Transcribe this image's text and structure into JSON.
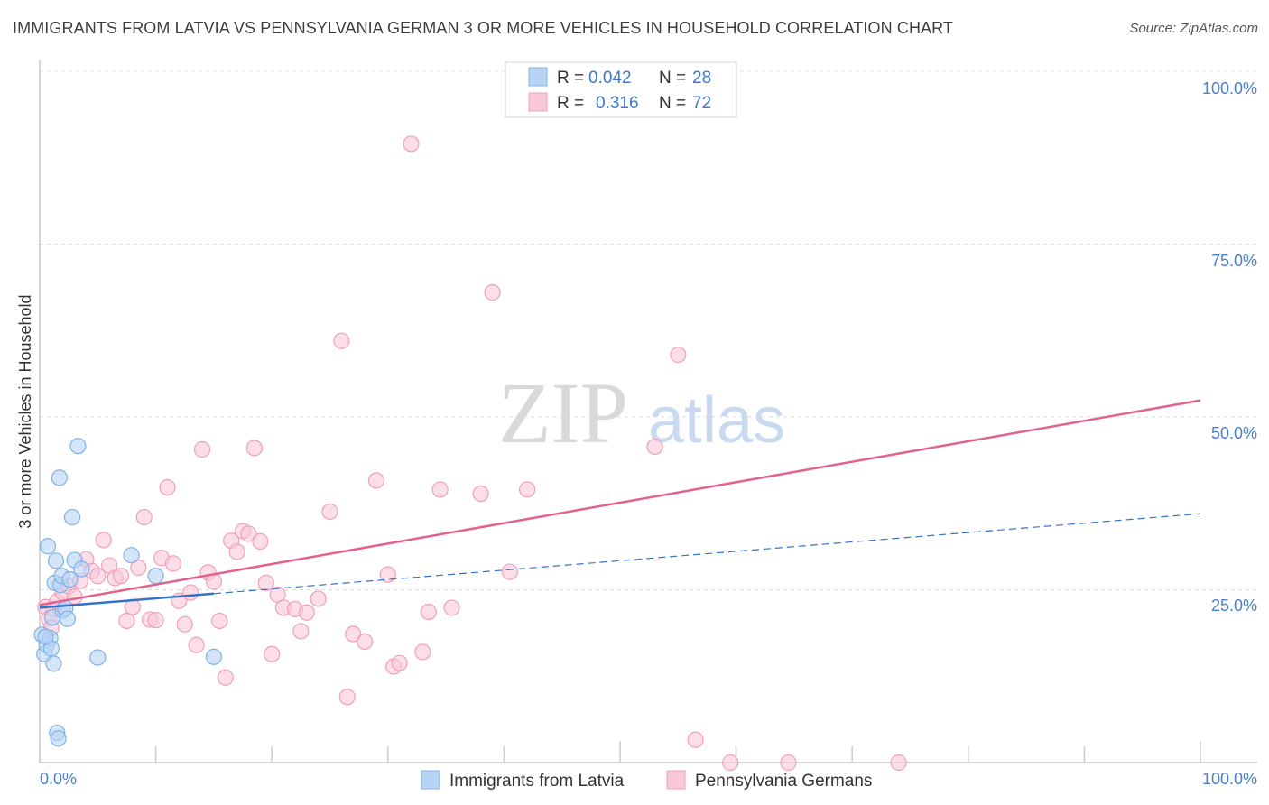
{
  "chart_data": {
    "type": "scatter",
    "title": "IMMIGRANTS FROM LATVIA VS PENNSYLVANIA GERMAN 3 OR MORE VEHICLES IN HOUSEHOLD CORRELATION CHART",
    "source": "Source: ZipAtlas.com",
    "xlabel": "",
    "ylabel": "3 or more Vehicles in Household",
    "xlim": [
      0,
      100
    ],
    "ylim": [
      0,
      100
    ],
    "x_tick_labels": [
      "0.0%",
      "100.0%"
    ],
    "y_tick_labels": [
      "100.0%",
      "75.0%",
      "50.0%",
      "25.0%"
    ],
    "y_tick_values": [
      100,
      75,
      50,
      25
    ],
    "watermark": {
      "zip": "ZIP",
      "atlas": "atlas"
    },
    "legend": [
      {
        "r_label": "R =",
        "r_value": "0.042",
        "n_label": "N =",
        "n_value": "28"
      },
      {
        "r_label": "R =",
        "r_value": "0.316",
        "n_label": "N =",
        "n_value": "72"
      }
    ],
    "series": [
      {
        "name": "Immigrants from Latvia",
        "color": "#7fb0e8",
        "fill": "#b9d3f4",
        "line_color": "#3472c8",
        "trend": {
          "solid_x": [
            0,
            15
          ],
          "dashed_x": [
            15,
            100
          ],
          "y_at_0": 22.4,
          "y_at_100": 36.0
        },
        "x": [
          0.2,
          0.4,
          0.6,
          0.7,
          0.9,
          1.0,
          1.1,
          1.2,
          1.3,
          1.4,
          1.5,
          1.6,
          1.7,
          1.8,
          1.9,
          2.0,
          2.2,
          2.4,
          2.6,
          2.8,
          3.0,
          3.3,
          3.6,
          5.0,
          7.9,
          10.0,
          15.0,
          0.5
        ],
        "y": [
          18.5,
          15.7,
          17.0,
          31.3,
          18.0,
          16.5,
          21.0,
          14.3,
          26.0,
          29.2,
          4.3,
          3.5,
          41.2,
          25.7,
          27.0,
          22.0,
          22.3,
          20.8,
          26.5,
          35.5,
          29.3,
          45.8,
          28.0,
          15.2,
          30.0,
          27.0,
          15.3,
          18.2
        ]
      },
      {
        "name": "Pennsylvania Germans",
        "color": "#f0a0ba",
        "fill": "#f8c8d8",
        "line_color": "#e3628c",
        "trend": {
          "solid_x": [
            0,
            100
          ],
          "y_at_0": 22.8,
          "y_at_100": 52.4
        },
        "x": [
          0.5,
          0.8,
          1.0,
          1.2,
          1.5,
          2.0,
          2.5,
          3.0,
          3.5,
          4.0,
          4.5,
          5.0,
          5.5,
          6.0,
          6.5,
          7.0,
          7.5,
          8.0,
          8.5,
          9.0,
          9.5,
          10.0,
          10.5,
          11.0,
          11.5,
          12.0,
          12.5,
          13.0,
          13.5,
          14.0,
          14.5,
          15.0,
          15.5,
          16.0,
          16.5,
          17.0,
          17.5,
          18.0,
          18.5,
          19.0,
          19.5,
          20.0,
          20.5,
          21.0,
          22.0,
          22.5,
          23.0,
          24.0,
          25.0,
          26.0,
          26.5,
          27.0,
          28.0,
          29.0,
          30.0,
          30.5,
          31.0,
          32.0,
          33.0,
          33.5,
          34.5,
          35.5,
          38.0,
          39.0,
          40.5,
          42.0,
          53.0,
          55.0,
          56.5,
          59.5,
          64.5,
          74.0
        ],
        "y": [
          22.5,
          20.8,
          19.5,
          22.2,
          23.3,
          24.6,
          25.5,
          24.0,
          26.3,
          29.4,
          27.7,
          27.0,
          32.2,
          28.5,
          26.7,
          27.0,
          20.5,
          22.5,
          28.2,
          35.5,
          20.7,
          20.6,
          29.6,
          39.8,
          28.8,
          23.4,
          20.0,
          24.6,
          17.0,
          45.3,
          27.5,
          26.2,
          20.5,
          12.3,
          32.1,
          30.5,
          33.5,
          33.1,
          45.5,
          32.0,
          26.0,
          15.7,
          24.3,
          22.4,
          22.2,
          19.0,
          21.7,
          23.7,
          36.3,
          61.0,
          9.5,
          18.6,
          17.5,
          40.8,
          27.2,
          13.9,
          14.4,
          89.5,
          16.0,
          21.8,
          39.5,
          22.4,
          38.9,
          68.0,
          27.6,
          39.5,
          45.7,
          59.0,
          3.3,
          0.0,
          0.0,
          0.0
        ]
      }
    ]
  }
}
